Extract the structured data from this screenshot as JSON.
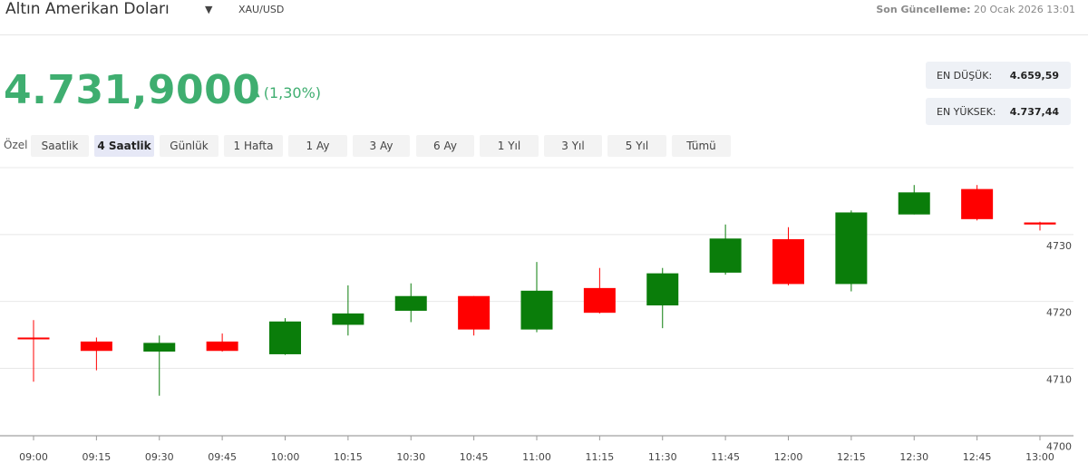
{
  "header": {
    "title": "Altın Amerikan Doları",
    "dropdown_icon": "▼",
    "symbol": "XAU/USD",
    "updated_label": "Son Güncelleme:",
    "updated_value": "20 Ocak 2026 13:01"
  },
  "quote": {
    "price": "4.731,9000",
    "change": "(1,30%)",
    "change_icon": "▲"
  },
  "stats": {
    "low_label": "EN DÜŞÜK:",
    "low_value": "4.659,59",
    "high_label": "EN YÜKSEK:",
    "high_value": "4.737,44"
  },
  "ranges": {
    "label": "Özel",
    "items": [
      "Saatlik",
      "4 Saatlik",
      "Günlük",
      "1 Hafta",
      "1 Ay",
      "3 Ay",
      "6 Ay",
      "1 Yıl",
      "3 Yıl",
      "5 Yıl",
      "Tümü"
    ],
    "active": "4 Saatlik"
  },
  "colors": {
    "up": "#0a7d0a",
    "down": "#ff0000",
    "accent": "#3fae70"
  },
  "chart_data": {
    "type": "candlestick",
    "categories": [
      "09:00",
      "09:15",
      "09:30",
      "09:45",
      "10:00",
      "10:15",
      "10:30",
      "10:45",
      "11:00",
      "11:15",
      "11:30",
      "11:45",
      "12:00",
      "12:15",
      "12:30",
      "12:45",
      "13:00"
    ],
    "ohlc": [
      {
        "open": 4714.6,
        "high": 4717.2,
        "low": 4708.0,
        "close": 4714.5
      },
      {
        "open": 4714.0,
        "high": 4714.6,
        "low": 4709.7,
        "close": 4712.6
      },
      {
        "open": 4712.5,
        "high": 4714.9,
        "low": 4705.9,
        "close": 4713.8
      },
      {
        "open": 4714.0,
        "high": 4715.2,
        "low": 4712.5,
        "close": 4712.6
      },
      {
        "open": 4712.1,
        "high": 4717.5,
        "low": 4712.0,
        "close": 4717.0
      },
      {
        "open": 4716.5,
        "high": 4722.4,
        "low": 4714.9,
        "close": 4718.2
      },
      {
        "open": 4718.6,
        "high": 4722.7,
        "low": 4716.9,
        "close": 4720.8
      },
      {
        "open": 4720.8,
        "high": 4720.8,
        "low": 4714.9,
        "close": 4715.8
      },
      {
        "open": 4715.8,
        "high": 4725.9,
        "low": 4715.4,
        "close": 4721.6
      },
      {
        "open": 4722.0,
        "high": 4725.0,
        "low": 4718.2,
        "close": 4718.3
      },
      {
        "open": 4719.4,
        "high": 4725.0,
        "low": 4716.0,
        "close": 4724.2
      },
      {
        "open": 4724.3,
        "high": 4731.5,
        "low": 4724.0,
        "close": 4729.4
      },
      {
        "open": 4729.3,
        "high": 4731.1,
        "low": 4722.4,
        "close": 4722.6
      },
      {
        "open": 4722.6,
        "high": 4733.6,
        "low": 4721.5,
        "close": 4733.3
      },
      {
        "open": 4733.0,
        "high": 4737.4,
        "low": 4733.0,
        "close": 4736.3
      },
      {
        "open": 4736.8,
        "high": 4737.4,
        "low": 4732.1,
        "close": 4732.3
      },
      {
        "open": 4731.8,
        "high": 4731.9,
        "low": 4730.6,
        "close": 4731.5
      }
    ],
    "y_ticks": [
      4700,
      4710,
      4720,
      4730
    ],
    "ylim": [
      4699.9,
      4740.0
    ],
    "grid": true
  }
}
